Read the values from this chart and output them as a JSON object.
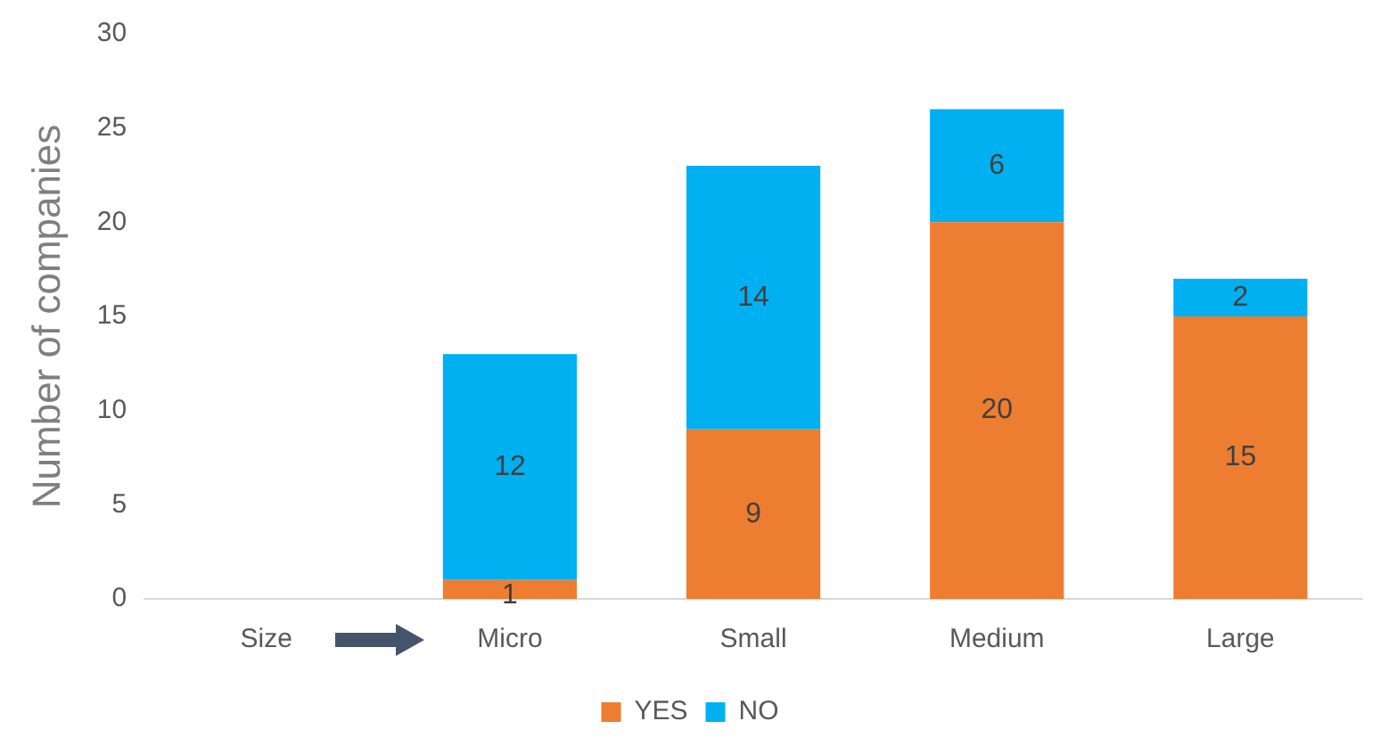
{
  "chart_data": {
    "type": "bar",
    "stacked": true,
    "ylabel": "Number of companies",
    "categories": [
      "Size",
      "Micro",
      "Small",
      "Medium",
      "Large"
    ],
    "series": [
      {
        "name": "YES",
        "color": "#ed7d31",
        "values": [
          null,
          1,
          9,
          20,
          15
        ]
      },
      {
        "name": "NO",
        "color": "#00b0f0",
        "values": [
          null,
          12,
          14,
          6,
          2
        ]
      }
    ],
    "ylim": [
      0,
      30
    ],
    "yticks": [
      0,
      5,
      10,
      15,
      20,
      25,
      30
    ],
    "grid": false,
    "legend": "bottom",
    "data_labels": true
  }
}
